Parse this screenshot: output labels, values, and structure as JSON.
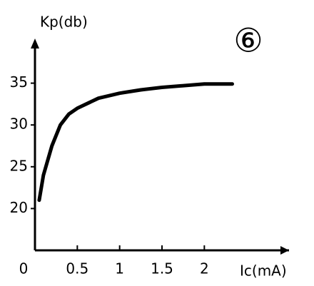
{
  "chart_data": {
    "type": "line",
    "annotation": "⑥",
    "y_label": "Kp(db)",
    "x_label": "Ic(mA)",
    "x": [
      0.05,
      0.1,
      0.2,
      0.3,
      0.4,
      0.5,
      0.75,
      1,
      1.25,
      1.5,
      2,
      2.33
    ],
    "series": [
      {
        "color": "#000000",
        "values": [
          21,
          24,
          27.5,
          30,
          31.3,
          32,
          33.2,
          33.8,
          34.2,
          34.5,
          34.9,
          34.9
        ]
      }
    ],
    "xlim": [
      0,
      3
    ],
    "ylim": [
      15,
      40
    ],
    "xticks": [
      0,
      0.5,
      1,
      1.5,
      2
    ],
    "yticks": [
      20,
      25,
      30,
      35
    ],
    "grid": false
  }
}
